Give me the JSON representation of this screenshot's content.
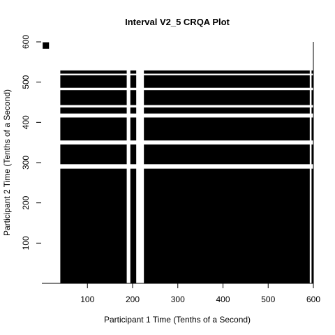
{
  "chart_data": {
    "type": "heatmap",
    "title": "Interval V2_5 CRQA Plot",
    "xlabel": "Participant 1 Time (Tenths of a Second)",
    "ylabel": "Participant 2 Time (Tenths of a Second)",
    "xlim": [
      0,
      600
    ],
    "ylim": [
      0,
      600
    ],
    "xticks": [
      100,
      200,
      300,
      400,
      500,
      600
    ],
    "yticks": [
      100,
      200,
      300,
      400,
      500,
      600
    ],
    "color": "#000000",
    "background": "#ffffff",
    "x_recurrent_intervals": [
      [
        0,
        15
      ],
      [
        40,
        187
      ],
      [
        195,
        208
      ],
      [
        225,
        592
      ],
      [
        596,
        600
      ]
    ],
    "y_recurrent_intervals": [
      [
        0,
        285
      ],
      [
        296,
        345
      ],
      [
        355,
        412
      ],
      [
        422,
        437
      ],
      [
        443,
        480
      ],
      [
        486,
        517
      ],
      [
        521,
        529
      ]
    ],
    "isolated_recurrence_block": {
      "x": [
        1,
        15
      ],
      "y": [
        583,
        599
      ]
    }
  }
}
